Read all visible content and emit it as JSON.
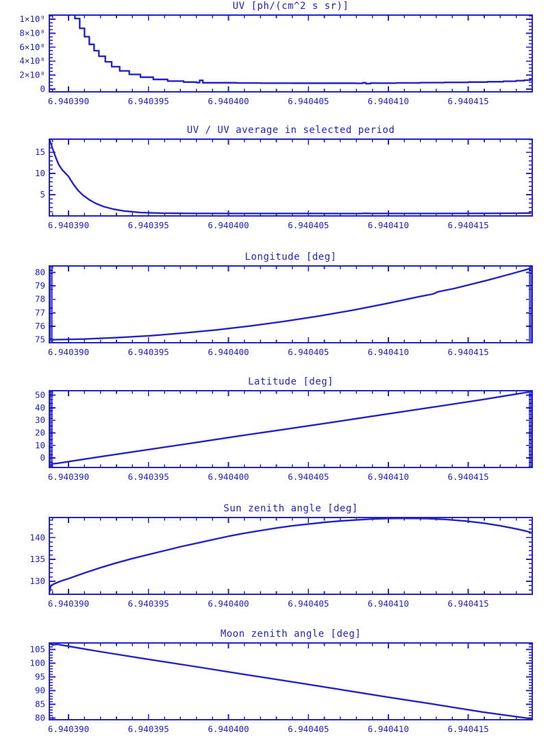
{
  "page": {
    "background": "#ffffff",
    "accent": "#2323c8",
    "description": "Six stacked time-series plots"
  },
  "x_axis": {
    "range": [
      6.9403888,
      6.940419
    ],
    "major_ticks": [
      {
        "value": 6.94039,
        "label": "6.940390"
      },
      {
        "value": 6.940395,
        "label": "6.940395"
      },
      {
        "value": 6.9404,
        "label": "6.940400"
      },
      {
        "value": 6.940405,
        "label": "6.940405"
      },
      {
        "value": 6.94041,
        "label": "6.940410"
      },
      {
        "value": 6.940415,
        "label": "6.940415"
      }
    ],
    "minor_step": 1e-06
  },
  "chart_data": [
    {
      "type": "line",
      "title": "UV [ph/(cm^2 s sr)]",
      "xlabel": "",
      "ylabel": "",
      "step": true,
      "y_range": [
        -40000000,
        1060000000
      ],
      "y_ticks": [
        {
          "value": 0,
          "label": "0"
        },
        {
          "value": 200000000,
          "label": "2×10⁸"
        },
        {
          "value": 400000000,
          "label": "4×10⁸"
        },
        {
          "value": 600000000,
          "label": "6×10⁸"
        },
        {
          "value": 800000000,
          "label": "8×10⁸"
        },
        {
          "value": 1000000000,
          "label": "1×10⁹"
        }
      ],
      "y_minor_step": 50000000,
      "points": [
        [
          6.9403888,
          2800000000.0
        ],
        [
          6.9403896,
          1600000000.0
        ],
        [
          6.9403901,
          1150000000.0
        ],
        [
          6.9403904,
          1010000000.0
        ],
        [
          6.9403907,
          870000000.0
        ],
        [
          6.940391,
          750000000.0
        ],
        [
          6.9403913,
          640000000.0
        ],
        [
          6.9403916,
          550000000.0
        ],
        [
          6.9403919,
          470000000.0
        ],
        [
          6.9403923,
          390000000.0
        ],
        [
          6.9403927,
          320000000.0
        ],
        [
          6.9403932,
          260000000.0
        ],
        [
          6.9403938,
          210000000.0
        ],
        [
          6.9403945,
          170000000.0
        ],
        [
          6.9403953,
          138000000.0
        ],
        [
          6.9403962,
          114000000.0
        ],
        [
          6.9403972,
          100000000.0
        ],
        [
          6.940398,
          92000000.0
        ],
        [
          6.9403982,
          125000000.0
        ],
        [
          6.9403984,
          90000000.0
        ],
        [
          6.9404005,
          87000000.0
        ],
        [
          6.940402,
          85000000.0
        ],
        [
          6.940404,
          84000000.0
        ],
        [
          6.940406,
          84000000.0
        ],
        [
          6.940408,
          82000000.0
        ],
        [
          6.9404084,
          90000000.0
        ],
        [
          6.9404086,
          78000000.0
        ],
        [
          6.9404089,
          86000000.0
        ],
        [
          6.9404093,
          85000000.0
        ],
        [
          6.9404105,
          88000000.0
        ],
        [
          6.940412,
          92000000.0
        ],
        [
          6.9404135,
          96000000.0
        ],
        [
          6.940415,
          100000000.0
        ],
        [
          6.9404162,
          105000000.0
        ],
        [
          6.9404172,
          112000000.0
        ],
        [
          6.940418,
          120000000.0
        ],
        [
          6.9404185,
          128000000.0
        ],
        [
          6.9404189,
          138000000.0
        ]
      ]
    },
    {
      "type": "line",
      "title": "UV / UV average in selected period",
      "xlabel": "",
      "ylabel": "",
      "step": false,
      "y_range": [
        0,
        18.1
      ],
      "y_ticks": [
        {
          "value": 5,
          "label": "5"
        },
        {
          "value": 10,
          "label": "10"
        },
        {
          "value": 15,
          "label": "15"
        }
      ],
      "y_minor_step": 1,
      "points": [
        [
          6.9403888,
          18.2
        ],
        [
          6.940389,
          15.9
        ],
        [
          6.9403892,
          13.8
        ],
        [
          6.9403894,
          12.0
        ],
        [
          6.9403896,
          10.9
        ],
        [
          6.9403898,
          10.1
        ],
        [
          6.94039,
          9.3
        ],
        [
          6.9403903,
          7.5
        ],
        [
          6.9403906,
          6.0
        ],
        [
          6.9403909,
          4.9
        ],
        [
          6.9403913,
          3.8
        ],
        [
          6.9403917,
          2.95
        ],
        [
          6.9403922,
          2.2
        ],
        [
          6.9403928,
          1.6
        ],
        [
          6.9403935,
          1.15
        ],
        [
          6.9403945,
          0.8
        ],
        [
          6.9403958,
          0.65
        ],
        [
          6.9403975,
          0.6
        ],
        [
          6.9404,
          0.58
        ],
        [
          6.940405,
          0.57
        ],
        [
          6.9404082,
          0.55
        ],
        [
          6.9404086,
          0.62
        ],
        [
          6.940409,
          0.57
        ],
        [
          6.940413,
          0.58
        ],
        [
          6.940416,
          0.6
        ],
        [
          6.940418,
          0.63
        ],
        [
          6.9404189,
          0.68
        ]
      ]
    },
    {
      "type": "line",
      "title": "Longitude [deg]",
      "xlabel": "",
      "ylabel": "",
      "step": false,
      "y_range": [
        74.78,
        80.48
      ],
      "y_ticks": [
        {
          "value": 75,
          "label": "75"
        },
        {
          "value": 76,
          "label": "76"
        },
        {
          "value": 77,
          "label": "77"
        },
        {
          "value": 78,
          "label": "78"
        },
        {
          "value": 79,
          "label": "79"
        },
        {
          "value": 80,
          "label": "80"
        }
      ],
      "y_minor_step": 0.1,
      "points": [
        [
          6.9403888,
          75.0
        ],
        [
          6.9403909,
          75.05
        ],
        [
          6.940393,
          75.16
        ],
        [
          6.9403951,
          75.3
        ],
        [
          6.9403972,
          75.5
        ],
        [
          6.9403993,
          75.74
        ],
        [
          6.9404014,
          76.03
        ],
        [
          6.9404035,
          76.37
        ],
        [
          6.9404057,
          76.77
        ],
        [
          6.9404078,
          77.2
        ],
        [
          6.9404099,
          77.69
        ],
        [
          6.940412,
          78.22
        ],
        [
          6.9404128,
          78.4
        ],
        [
          6.9404131,
          78.56
        ],
        [
          6.9404141,
          78.8
        ],
        [
          6.9404162,
          79.42
        ],
        [
          6.9404177,
          79.9
        ],
        [
          6.9404189,
          80.3
        ]
      ]
    },
    {
      "type": "line",
      "title": "Latitude [deg]",
      "xlabel": "",
      "ylabel": "",
      "step": false,
      "y_range": [
        -7.6,
        53.6
      ],
      "y_ticks": [
        {
          "value": 0,
          "label": "0"
        },
        {
          "value": 10,
          "label": "10"
        },
        {
          "value": 20,
          "label": "20"
        },
        {
          "value": 30,
          "label": "30"
        },
        {
          "value": 40,
          "label": "40"
        },
        {
          "value": 50,
          "label": "50"
        }
      ],
      "y_minor_step": 1,
      "points": [
        [
          6.9403888,
          -6.8
        ],
        [
          6.940389,
          -4.6
        ],
        [
          6.9403893,
          -4.3
        ],
        [
          6.9403918,
          0.6
        ],
        [
          6.9403948,
          6.3
        ],
        [
          6.9403978,
          12.0
        ],
        [
          6.9404008,
          17.8
        ],
        [
          6.9404039,
          23.5
        ],
        [
          6.9404069,
          29.2
        ],
        [
          6.9404099,
          35.0
        ],
        [
          6.9404129,
          40.7
        ],
        [
          6.9404159,
          46.5
        ],
        [
          6.9404189,
          52.8
        ]
      ]
    },
    {
      "type": "line",
      "title": "Sun zenith angle [deg]",
      "xlabel": "",
      "ylabel": "",
      "step": false,
      "y_range": [
        127.0,
        144.6
      ],
      "y_ticks": [
        {
          "value": 130,
          "label": "130"
        },
        {
          "value": 135,
          "label": "135"
        },
        {
          "value": 140,
          "label": "140"
        }
      ],
      "y_minor_step": 1,
      "points": [
        [
          6.9403888,
          127.3
        ],
        [
          6.9403889,
          129.0
        ],
        [
          6.9403891,
          129.4
        ],
        [
          6.9403895,
          130.0
        ],
        [
          6.94039,
          130.6
        ],
        [
          6.940391,
          131.9
        ],
        [
          6.940392,
          133.1
        ],
        [
          6.940393,
          134.2
        ],
        [
          6.940394,
          135.2
        ],
        [
          6.940395,
          136.1
        ],
        [
          6.940396,
          137.0
        ],
        [
          6.940397,
          137.9
        ],
        [
          6.940398,
          138.7
        ],
        [
          6.940399,
          139.5
        ],
        [
          6.9404,
          140.3
        ],
        [
          6.940401,
          141.0
        ],
        [
          6.940402,
          141.6
        ],
        [
          6.940403,
          142.2
        ],
        [
          6.940404,
          142.7
        ],
        [
          6.940405,
          143.1
        ],
        [
          6.940406,
          143.5
        ],
        [
          6.940407,
          143.8
        ],
        [
          6.940408,
          144.05
        ],
        [
          6.940409,
          144.25
        ],
        [
          6.94041,
          144.38
        ],
        [
          6.9404112,
          144.42
        ],
        [
          6.9404124,
          144.35
        ],
        [
          6.9404136,
          144.15
        ],
        [
          6.9404148,
          143.8
        ],
        [
          6.940416,
          143.3
        ],
        [
          6.940417,
          142.7
        ],
        [
          6.940418,
          142.0
        ],
        [
          6.9404186,
          141.5
        ],
        [
          6.9404189,
          141.2
        ]
      ]
    },
    {
      "type": "line",
      "title": "Moon zenith angle [deg]",
      "xlabel": "",
      "ylabel": "",
      "step": false,
      "y_range": [
        79.4,
        107.4
      ],
      "y_ticks": [
        {
          "value": 80,
          "label": "80"
        },
        {
          "value": 85,
          "label": "85"
        },
        {
          "value": 90,
          "label": "90"
        },
        {
          "value": 95,
          "label": "95"
        },
        {
          "value": 100,
          "label": "100"
        },
        {
          "value": 105,
          "label": "105"
        }
      ],
      "y_minor_step": 1,
      "points": [
        [
          6.9403888,
          107.2
        ],
        [
          6.940389,
          106.7
        ],
        [
          6.9403893,
          106.9
        ],
        [
          6.9403897,
          106.5
        ],
        [
          6.9403918,
          104.4
        ],
        [
          6.9403948,
          101.6
        ],
        [
          6.9403978,
          98.9
        ],
        [
          6.9404008,
          96.1
        ],
        [
          6.9404039,
          93.3
        ],
        [
          6.9404069,
          90.5
        ],
        [
          6.9404099,
          87.7
        ],
        [
          6.9404129,
          85.0
        ],
        [
          6.9404159,
          82.2
        ],
        [
          6.9404189,
          79.8
        ]
      ]
    }
  ]
}
